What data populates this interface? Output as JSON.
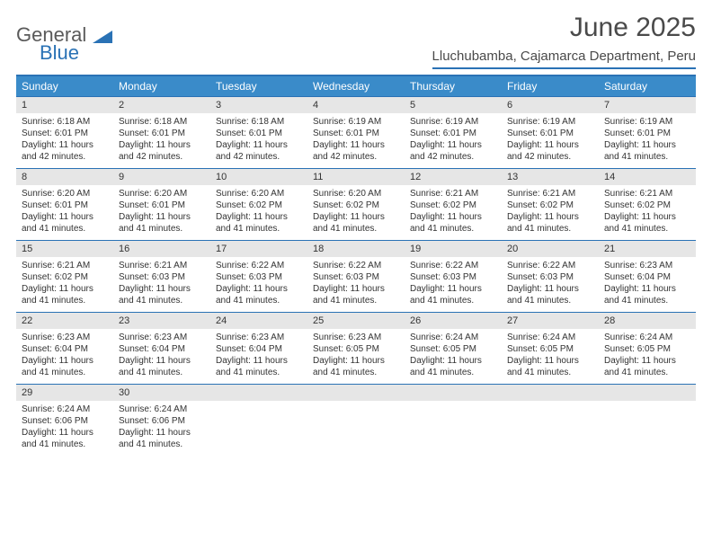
{
  "logo": {
    "text1": "General",
    "text2": "Blue"
  },
  "title": "June 2025",
  "location": "Lluchubamba, Cajamarca Department, Peru",
  "colors": {
    "header_bg": "#3a8bc9",
    "header_text": "#ffffff",
    "border": "#2a72b5",
    "daynum_bg": "#e6e6e6",
    "text": "#333333",
    "logo_gray": "#5a5a5a",
    "logo_blue": "#2a72b5",
    "page_bg": "#ffffff"
  },
  "typography": {
    "title_fontsize": 30,
    "location_fontsize": 15,
    "dayhead_fontsize": 12,
    "daynum_fontsize": 11,
    "body_fontsize": 10
  },
  "day_labels": [
    "Sunday",
    "Monday",
    "Tuesday",
    "Wednesday",
    "Thursday",
    "Friday",
    "Saturday"
  ],
  "weeks": [
    [
      {
        "n": "1",
        "sr": "6:18 AM",
        "ss": "6:01 PM",
        "dl": "11 hours and 42 minutes."
      },
      {
        "n": "2",
        "sr": "6:18 AM",
        "ss": "6:01 PM",
        "dl": "11 hours and 42 minutes."
      },
      {
        "n": "3",
        "sr": "6:18 AM",
        "ss": "6:01 PM",
        "dl": "11 hours and 42 minutes."
      },
      {
        "n": "4",
        "sr": "6:19 AM",
        "ss": "6:01 PM",
        "dl": "11 hours and 42 minutes."
      },
      {
        "n": "5",
        "sr": "6:19 AM",
        "ss": "6:01 PM",
        "dl": "11 hours and 42 minutes."
      },
      {
        "n": "6",
        "sr": "6:19 AM",
        "ss": "6:01 PM",
        "dl": "11 hours and 42 minutes."
      },
      {
        "n": "7",
        "sr": "6:19 AM",
        "ss": "6:01 PM",
        "dl": "11 hours and 41 minutes."
      }
    ],
    [
      {
        "n": "8",
        "sr": "6:20 AM",
        "ss": "6:01 PM",
        "dl": "11 hours and 41 minutes."
      },
      {
        "n": "9",
        "sr": "6:20 AM",
        "ss": "6:01 PM",
        "dl": "11 hours and 41 minutes."
      },
      {
        "n": "10",
        "sr": "6:20 AM",
        "ss": "6:02 PM",
        "dl": "11 hours and 41 minutes."
      },
      {
        "n": "11",
        "sr": "6:20 AM",
        "ss": "6:02 PM",
        "dl": "11 hours and 41 minutes."
      },
      {
        "n": "12",
        "sr": "6:21 AM",
        "ss": "6:02 PM",
        "dl": "11 hours and 41 minutes."
      },
      {
        "n": "13",
        "sr": "6:21 AM",
        "ss": "6:02 PM",
        "dl": "11 hours and 41 minutes."
      },
      {
        "n": "14",
        "sr": "6:21 AM",
        "ss": "6:02 PM",
        "dl": "11 hours and 41 minutes."
      }
    ],
    [
      {
        "n": "15",
        "sr": "6:21 AM",
        "ss": "6:02 PM",
        "dl": "11 hours and 41 minutes."
      },
      {
        "n": "16",
        "sr": "6:21 AM",
        "ss": "6:03 PM",
        "dl": "11 hours and 41 minutes."
      },
      {
        "n": "17",
        "sr": "6:22 AM",
        "ss": "6:03 PM",
        "dl": "11 hours and 41 minutes."
      },
      {
        "n": "18",
        "sr": "6:22 AM",
        "ss": "6:03 PM",
        "dl": "11 hours and 41 minutes."
      },
      {
        "n": "19",
        "sr": "6:22 AM",
        "ss": "6:03 PM",
        "dl": "11 hours and 41 minutes."
      },
      {
        "n": "20",
        "sr": "6:22 AM",
        "ss": "6:03 PM",
        "dl": "11 hours and 41 minutes."
      },
      {
        "n": "21",
        "sr": "6:23 AM",
        "ss": "6:04 PM",
        "dl": "11 hours and 41 minutes."
      }
    ],
    [
      {
        "n": "22",
        "sr": "6:23 AM",
        "ss": "6:04 PM",
        "dl": "11 hours and 41 minutes."
      },
      {
        "n": "23",
        "sr": "6:23 AM",
        "ss": "6:04 PM",
        "dl": "11 hours and 41 minutes."
      },
      {
        "n": "24",
        "sr": "6:23 AM",
        "ss": "6:04 PM",
        "dl": "11 hours and 41 minutes."
      },
      {
        "n": "25",
        "sr": "6:23 AM",
        "ss": "6:05 PM",
        "dl": "11 hours and 41 minutes."
      },
      {
        "n": "26",
        "sr": "6:24 AM",
        "ss": "6:05 PM",
        "dl": "11 hours and 41 minutes."
      },
      {
        "n": "27",
        "sr": "6:24 AM",
        "ss": "6:05 PM",
        "dl": "11 hours and 41 minutes."
      },
      {
        "n": "28",
        "sr": "6:24 AM",
        "ss": "6:05 PM",
        "dl": "11 hours and 41 minutes."
      }
    ],
    [
      {
        "n": "29",
        "sr": "6:24 AM",
        "ss": "6:06 PM",
        "dl": "11 hours and 41 minutes."
      },
      {
        "n": "30",
        "sr": "6:24 AM",
        "ss": "6:06 PM",
        "dl": "11 hours and 41 minutes."
      },
      null,
      null,
      null,
      null,
      null
    ]
  ],
  "labels": {
    "sunrise": "Sunrise: ",
    "sunset": "Sunset: ",
    "daylight": "Daylight: "
  }
}
